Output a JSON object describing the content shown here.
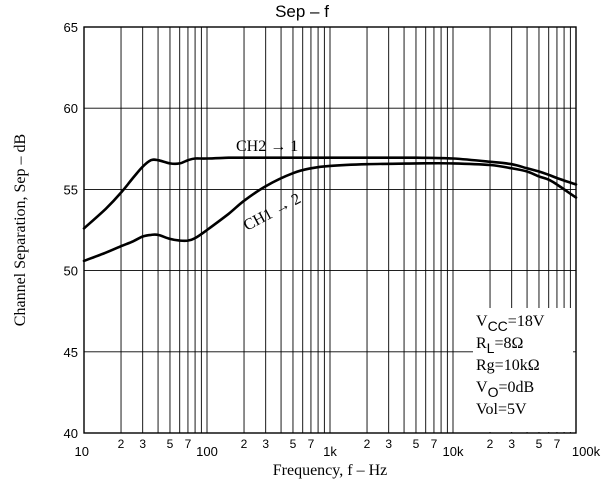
{
  "chart_data": {
    "type": "line",
    "title": "Sep – f",
    "xlabel": "Frequency,  f  –  Hz",
    "ylabel": "Channel Separation,  Sep  –  dB",
    "x_scale": "log",
    "xlim": [
      10,
      100000
    ],
    "ylim": [
      40,
      65
    ],
    "y_ticks": [
      "40",
      "45",
      "50",
      "55",
      "60",
      "65"
    ],
    "x_decade_ticks": [
      {
        "value": 10,
        "label": "10"
      },
      {
        "value": 100,
        "label": "100"
      },
      {
        "value": 1000,
        "label": "1k"
      },
      {
        "value": 10000,
        "label": "10k"
      },
      {
        "value": 100000,
        "label": "100k"
      }
    ],
    "x_minor_labels": [
      "2",
      "3",
      "5",
      "7"
    ],
    "grid": true,
    "series": [
      {
        "name": "CH2 → 1",
        "x": [
          10,
          15,
          20,
          25,
          30,
          35,
          40,
          50,
          60,
          70,
          80,
          100,
          150,
          200,
          300,
          500,
          1000,
          2000,
          5000,
          10000,
          20000,
          30000,
          40000,
          50000,
          60000,
          70000,
          100000
        ],
        "y": [
          52.6,
          53.8,
          54.8,
          55.7,
          56.4,
          56.8,
          56.8,
          56.6,
          56.6,
          56.8,
          56.9,
          56.9,
          56.95,
          56.95,
          56.95,
          56.95,
          56.95,
          56.95,
          56.95,
          56.9,
          56.7,
          56.55,
          56.3,
          56.1,
          55.9,
          55.7,
          55.3
        ]
      },
      {
        "name": "CH1 → 2",
        "x": [
          10,
          15,
          20,
          25,
          30,
          35,
          40,
          50,
          60,
          70,
          80,
          100,
          150,
          200,
          300,
          500,
          700,
          1000,
          2000,
          5000,
          10000,
          20000,
          30000,
          40000,
          50000,
          60000,
          70000,
          100000
        ],
        "y": [
          50.6,
          51.1,
          51.5,
          51.8,
          52.1,
          52.2,
          52.2,
          51.95,
          51.85,
          51.85,
          52.0,
          52.5,
          53.5,
          54.3,
          55.2,
          56.0,
          56.3,
          56.45,
          56.55,
          56.6,
          56.6,
          56.5,
          56.3,
          56.1,
          55.8,
          55.6,
          55.3,
          54.5
        ]
      }
    ],
    "curve_labels": [
      "CH2 → 1",
      "CH1 → 2"
    ],
    "conditions": [
      {
        "main": "V",
        "sub": "CC",
        "rest": "=18V"
      },
      {
        "main": "R",
        "sub": "L",
        "rest": "=8Ω"
      },
      {
        "main": "Rg=10kΩ",
        "sub": "",
        "rest": ""
      },
      {
        "main": "V",
        "sub": "O",
        "rest": "=0dB"
      },
      {
        "main": "Vol=5V",
        "sub": "",
        "rest": ""
      }
    ]
  }
}
